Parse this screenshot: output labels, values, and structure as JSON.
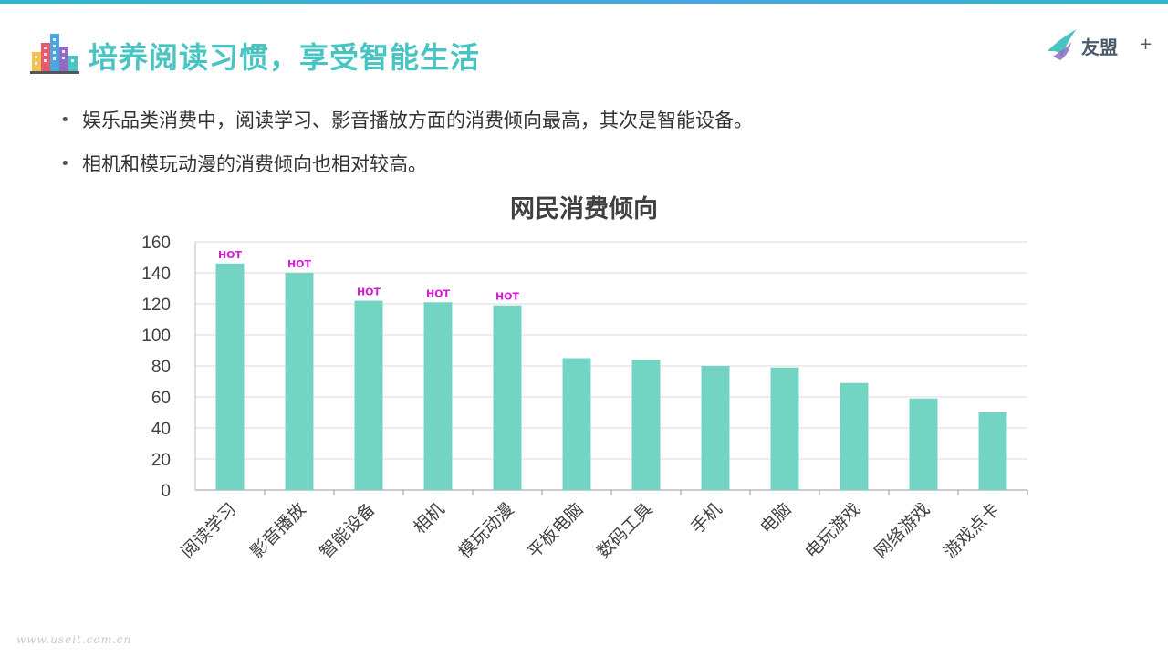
{
  "header": {
    "title": "培养阅读习惯，享受智能生活",
    "brand_name": "友盟",
    "brand_plus": "+"
  },
  "bullets": [
    "娱乐品类消费中，阅读学习、影音播放方面的消费倾向最高，其次是智能设备。",
    "相机和模玩动漫的消费倾向也相对较高。"
  ],
  "chart_data": {
    "type": "bar",
    "title": "网民消费倾向",
    "categories": [
      "阅读学习",
      "影音播放",
      "智能设备",
      "相机",
      "模玩动漫",
      "平板电脑",
      "数码工具",
      "手机",
      "电脑",
      "电玩游戏",
      "网络游戏",
      "游戏点卡"
    ],
    "values": [
      146,
      140,
      122,
      121,
      119,
      85,
      84,
      80,
      79,
      69,
      59,
      50
    ],
    "annotations": [
      "HOT",
      "HOT",
      "HOT",
      "HOT",
      "HOT",
      "",
      "",
      "",
      "",
      "",
      "",
      ""
    ],
    "ylim": [
      0,
      160
    ],
    "yticks": [
      0,
      20,
      40,
      60,
      80,
      100,
      120,
      140,
      160
    ],
    "grid": true,
    "bar_color": "#74d4c4",
    "annotation_color": "#d81ad8",
    "xlabel": "",
    "ylabel": ""
  },
  "watermark": "www.useit.com.cn"
}
